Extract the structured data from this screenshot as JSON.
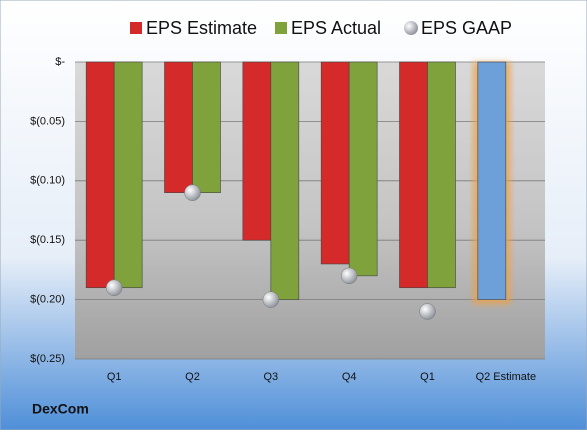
{
  "chart_data": {
    "type": "bar",
    "categories": [
      "Q1",
      "Q2",
      "Q3",
      "Q4",
      "Q1",
      "Q2 Estimate"
    ],
    "series": [
      {
        "name": "EPS Estimate",
        "color": "#d42a2a",
        "colors": [
          "#d42a2a",
          "#d42a2a",
          "#d42a2a",
          "#d42a2a",
          "#d42a2a",
          "#6d9fd8"
        ],
        "values": [
          -0.19,
          -0.11,
          -0.15,
          -0.17,
          -0.19,
          -0.2
        ]
      },
      {
        "name": "EPS Actual",
        "color": "#7fa23c",
        "values": [
          -0.19,
          -0.11,
          -0.2,
          -0.18,
          -0.19,
          null
        ]
      },
      {
        "name": "EPS GAAP",
        "color": "#b8bcc4",
        "marker": "sphere",
        "values": [
          -0.19,
          -0.11,
          -0.2,
          -0.18,
          -0.21,
          null
        ]
      }
    ],
    "ylim": [
      -0.25,
      0
    ],
    "yticks": [
      {
        "value": 0,
        "label": "$-"
      },
      {
        "value": -0.05,
        "label": "$(0.05)"
      },
      {
        "value": -0.1,
        "label": "$(0.10)"
      },
      {
        "value": -0.15,
        "label": "$(0.15)"
      },
      {
        "value": -0.2,
        "label": "$(0.20)"
      },
      {
        "value": -0.25,
        "label": "$(0.25)"
      }
    ],
    "grid": true,
    "legend": "top",
    "footer": "DexCom"
  }
}
